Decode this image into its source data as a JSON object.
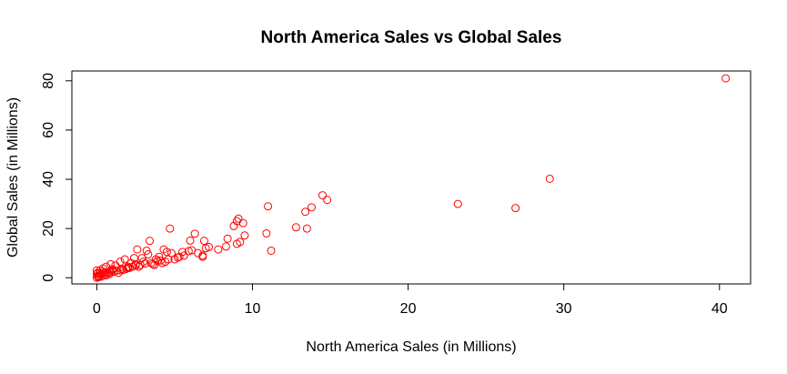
{
  "chart_data": {
    "type": "scatter",
    "title": "North America Sales vs Global Sales",
    "xlabel": "North America Sales (in Millions)",
    "ylabel": "Global Sales (in Millions)",
    "xlim": [
      -1.6,
      42.0
    ],
    "ylim": [
      -2.5,
      84.0
    ],
    "xticks": [
      0,
      10,
      20,
      30,
      40
    ],
    "yticks": [
      0,
      20,
      40,
      60,
      80
    ],
    "marker": "open-circle",
    "color": "#ff0000",
    "grid": false,
    "legend": "none",
    "series": [
      {
        "x": [
          40.4,
          29.1,
          26.9,
          23.2,
          14.5,
          14.8,
          13.8,
          13.4,
          12.8,
          13.5,
          11.0,
          10.9,
          11.2,
          9.0,
          9.1,
          9.4,
          9.5,
          8.8,
          9.2,
          9.0,
          8.4,
          8.3,
          7.8,
          7.2,
          6.9,
          7.0,
          6.8,
          6.3,
          6.0,
          5.9,
          5.5,
          5.3,
          6.1,
          4.7,
          4.8,
          3.4,
          3.2,
          3.3,
          4.3,
          4.5,
          4.0,
          4.4,
          3.8,
          2.6,
          2.9,
          2.4,
          2.2,
          1.8,
          1.5,
          1.2,
          0.9,
          0.6,
          0.4,
          0.2,
          0.05,
          3.0,
          2.0,
          1.0,
          0.5,
          0.3,
          0.1,
          5.0,
          4.2,
          3.6,
          2.7,
          1.6,
          0.8,
          0.0,
          0.0,
          0.1,
          0.2,
          0.3,
          0.4,
          0.5,
          0.6,
          0.7,
          0.8,
          0.9,
          1.1,
          1.3,
          1.4,
          1.7,
          1.9,
          2.1,
          2.3,
          2.5,
          2.8,
          3.1,
          3.5,
          3.7,
          3.9,
          4.1,
          4.6,
          5.2,
          5.6,
          6.5,
          6.8,
          1.0,
          1.5,
          2.0,
          2.5,
          0.0,
          0.05,
          0.15
        ],
        "y": [
          81.0,
          40.2,
          28.3,
          30.0,
          33.5,
          31.6,
          28.6,
          26.8,
          20.5,
          20.0,
          29.0,
          18.0,
          11.0,
          23.0,
          24.0,
          22.2,
          17.2,
          21.0,
          14.5,
          13.8,
          15.9,
          12.7,
          11.5,
          12.5,
          15.0,
          12.0,
          8.5,
          17.9,
          15.1,
          10.8,
          10.5,
          8.5,
          11.2,
          20.0,
          10.0,
          15.0,
          11.0,
          9.5,
          11.5,
          10.5,
          8.5,
          6.5,
          7.5,
          11.5,
          8.0,
          8.0,
          6.0,
          7.5,
          6.5,
          5.0,
          5.5,
          4.5,
          3.8,
          3.0,
          2.0,
          6.5,
          4.0,
          3.0,
          2.0,
          1.5,
          0.5,
          7.5,
          6.0,
          5.5,
          4.5,
          3.5,
          2.5,
          0.0,
          1.5,
          0.2,
          1.8,
          0.5,
          2.5,
          1.2,
          1.0,
          2.0,
          1.5,
          2.2,
          2.5,
          3.0,
          2.0,
          3.2,
          3.6,
          4.0,
          4.5,
          5.0,
          5.2,
          5.8,
          6.0,
          5.2,
          6.8,
          7.0,
          7.5,
          8.2,
          9.0,
          10.0,
          9.0,
          3.5,
          3.0,
          4.5,
          5.5,
          3.0,
          0.8,
          0.3
        ]
      }
    ]
  }
}
